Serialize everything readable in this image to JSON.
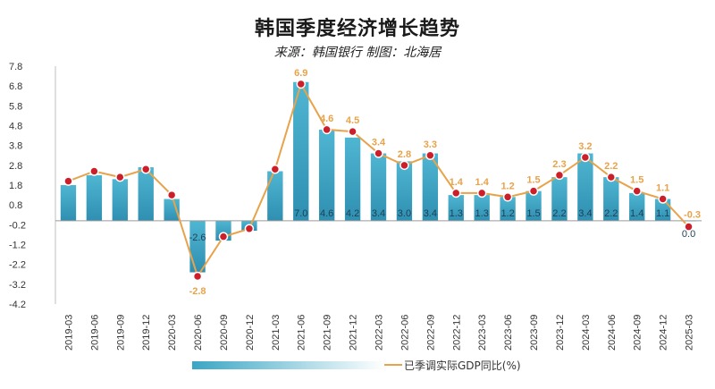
{
  "header": {
    "title": "韩国季度经济增长趋势",
    "subtitle": "来源：韩国银行 制图：北海居"
  },
  "chart_data": {
    "type": "bar",
    "categories": [
      "2019-03",
      "2019-06",
      "2019-09",
      "2019-12",
      "2020-03",
      "2020-06",
      "2020-09",
      "2020-12",
      "2021-03",
      "2021-06",
      "2021-09",
      "2021-12",
      "2022-03",
      "2022-06",
      "2022-09",
      "2022-12",
      "2023-03",
      "2023-06",
      "2023-09",
      "2023-12",
      "2024-03",
      "2024-06",
      "2024-09",
      "2024-12",
      "2025-03"
    ],
    "series": [
      {
        "kind": "bar",
        "values": [
          1.8,
          2.3,
          2.1,
          2.7,
          1.1,
          -2.6,
          -1.0,
          -0.5,
          2.5,
          7.0,
          4.6,
          4.2,
          3.4,
          3.0,
          3.4,
          1.3,
          1.3,
          1.2,
          1.5,
          2.2,
          3.4,
          2.2,
          1.4,
          1.1,
          0.0
        ],
        "labeled": [
          false,
          false,
          false,
          false,
          false,
          true,
          false,
          false,
          false,
          true,
          true,
          true,
          true,
          true,
          true,
          true,
          true,
          true,
          true,
          true,
          true,
          true,
          true,
          true,
          true
        ],
        "color": "#3aa6c4"
      },
      {
        "name": "已季调实际GDP同比(%)",
        "kind": "line",
        "values": [
          2.0,
          2.5,
          2.2,
          2.6,
          1.3,
          -2.8,
          -0.8,
          -0.4,
          2.6,
          6.9,
          4.6,
          4.5,
          3.4,
          2.8,
          3.3,
          1.4,
          1.4,
          1.2,
          1.5,
          2.3,
          3.2,
          2.2,
          1.5,
          1.1,
          -0.3
        ],
        "labeled": [
          false,
          false,
          false,
          false,
          false,
          true,
          false,
          false,
          false,
          true,
          true,
          true,
          true,
          true,
          true,
          true,
          true,
          true,
          true,
          true,
          true,
          true,
          true,
          true,
          true
        ],
        "color": "#e8a34a",
        "marker_color": "#cc1f2a"
      }
    ],
    "yticks": [
      "7.8",
      "6.8",
      "5.8",
      "4.8",
      "3.8",
      "2.8",
      "1.8",
      "0.8",
      "-0.2",
      "-1.2",
      "-2.2",
      "-3.2",
      "-4.2"
    ],
    "ylim": [
      -4.2,
      7.8
    ],
    "grid": false,
    "legend_position": "bottom"
  }
}
